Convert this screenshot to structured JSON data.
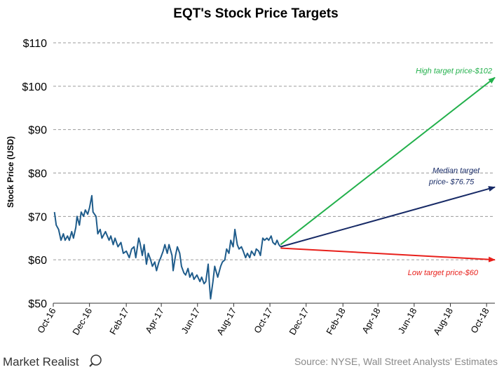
{
  "chart_data": {
    "type": "line",
    "title": "EQT's Stock Price Targets",
    "ylabel": "Stock Price (USD)",
    "xlabel": "",
    "ylim": [
      50,
      110
    ],
    "yticks": [
      50,
      60,
      70,
      80,
      90,
      100,
      110
    ],
    "ytick_labels": [
      "$50",
      "$60",
      "$70",
      "$80",
      "$90",
      "$100",
      "$110"
    ],
    "x_range": [
      "2016-10-01",
      "2018-10-15"
    ],
    "xtick_labels": [
      "Oct-16",
      "Dec-16",
      "Feb-17",
      "Apr-17",
      "Jun-17",
      "Aug-17",
      "Oct-17",
      "Dec-17",
      "Feb-18",
      "Apr-18",
      "Jun-18",
      "Aug-18",
      "Oct-18"
    ],
    "xtick_dates": [
      "2016-10-01",
      "2016-12-01",
      "2017-02-01",
      "2017-04-01",
      "2017-06-01",
      "2017-08-01",
      "2017-10-01",
      "2017-12-01",
      "2018-02-01",
      "2018-04-01",
      "2018-06-01",
      "2018-08-01",
      "2018-10-01"
    ],
    "grid": true,
    "series": [
      {
        "color": "#1f5c8b",
        "points": [
          [
            "2016-10-03",
            71.0
          ],
          [
            "2016-10-06",
            68.0
          ],
          [
            "2016-10-10",
            67.0
          ],
          [
            "2016-10-14",
            64.5
          ],
          [
            "2016-10-18",
            66.0
          ],
          [
            "2016-10-21",
            64.5
          ],
          [
            "2016-10-25",
            65.5
          ],
          [
            "2016-10-28",
            64.5
          ],
          [
            "2016-11-01",
            66.5
          ],
          [
            "2016-11-04",
            65.0
          ],
          [
            "2016-11-08",
            67.5
          ],
          [
            "2016-11-10",
            70.0
          ],
          [
            "2016-11-14",
            68.0
          ],
          [
            "2016-11-17",
            71.0
          ],
          [
            "2016-11-21",
            70.0
          ],
          [
            "2016-11-24",
            71.5
          ],
          [
            "2016-11-28",
            70.5
          ],
          [
            "2016-12-01",
            72.0
          ],
          [
            "2016-12-05",
            74.8
          ],
          [
            "2016-12-07",
            71.0
          ],
          [
            "2016-12-12",
            70.0
          ],
          [
            "2016-12-15",
            66.0
          ],
          [
            "2016-12-19",
            67.0
          ],
          [
            "2016-12-22",
            65.0
          ],
          [
            "2016-12-28",
            66.5
          ],
          [
            "2017-01-03",
            64.5
          ],
          [
            "2017-01-06",
            65.5
          ],
          [
            "2017-01-10",
            63.5
          ],
          [
            "2017-01-13",
            65.0
          ],
          [
            "2017-01-18",
            63.0
          ],
          [
            "2017-01-23",
            64.0
          ],
          [
            "2017-01-27",
            61.5
          ],
          [
            "2017-02-01",
            62.0
          ],
          [
            "2017-02-06",
            60.5
          ],
          [
            "2017-02-10",
            62.5
          ],
          [
            "2017-02-14",
            63.0
          ],
          [
            "2017-02-17",
            60.5
          ],
          [
            "2017-02-22",
            65.0
          ],
          [
            "2017-02-24",
            64.0
          ],
          [
            "2017-02-28",
            61.0
          ],
          [
            "2017-03-03",
            63.5
          ],
          [
            "2017-03-07",
            59.0
          ],
          [
            "2017-03-10",
            61.5
          ],
          [
            "2017-03-14",
            60.0
          ],
          [
            "2017-03-17",
            58.5
          ],
          [
            "2017-03-21",
            59.5
          ],
          [
            "2017-03-24",
            57.5
          ],
          [
            "2017-03-28",
            59.5
          ],
          [
            "2017-03-31",
            60.5
          ],
          [
            "2017-04-04",
            62.0
          ],
          [
            "2017-04-07",
            63.5
          ],
          [
            "2017-04-11",
            61.5
          ],
          [
            "2017-04-14",
            63.5
          ],
          [
            "2017-04-19",
            61.0
          ],
          [
            "2017-04-21",
            57.5
          ],
          [
            "2017-04-25",
            61.0
          ],
          [
            "2017-04-28",
            63.0
          ],
          [
            "2017-05-02",
            61.5
          ],
          [
            "2017-05-05",
            58.5
          ],
          [
            "2017-05-09",
            57.0
          ],
          [
            "2017-05-12",
            56.5
          ],
          [
            "2017-05-16",
            58.0
          ],
          [
            "2017-05-19",
            56.0
          ],
          [
            "2017-05-23",
            57.0
          ],
          [
            "2017-05-26",
            55.5
          ],
          [
            "2017-05-31",
            56.5
          ],
          [
            "2017-06-05",
            55.0
          ],
          [
            "2017-06-08",
            56.0
          ],
          [
            "2017-06-12",
            54.5
          ],
          [
            "2017-06-15",
            55.0
          ],
          [
            "2017-06-19",
            59.0
          ],
          [
            "2017-06-21",
            54.5
          ],
          [
            "2017-06-23",
            51.0
          ],
          [
            "2017-06-27",
            55.0
          ],
          [
            "2017-06-30",
            58.5
          ],
          [
            "2017-07-05",
            56.0
          ],
          [
            "2017-07-10",
            58.5
          ],
          [
            "2017-07-13",
            59.5
          ],
          [
            "2017-07-17",
            60.0
          ],
          [
            "2017-07-20",
            62.5
          ],
          [
            "2017-07-24",
            61.5
          ],
          [
            "2017-07-27",
            64.5
          ],
          [
            "2017-07-31",
            63.0
          ],
          [
            "2017-08-03",
            67.0
          ],
          [
            "2017-08-07",
            63.5
          ],
          [
            "2017-08-10",
            62.5
          ],
          [
            "2017-08-14",
            63.0
          ],
          [
            "2017-08-17",
            62.0
          ],
          [
            "2017-08-21",
            60.5
          ],
          [
            "2017-08-24",
            61.5
          ],
          [
            "2017-08-28",
            60.5
          ],
          [
            "2017-08-31",
            62.0
          ],
          [
            "2017-09-05",
            61.0
          ],
          [
            "2017-09-08",
            62.5
          ],
          [
            "2017-09-12",
            62.0
          ],
          [
            "2017-09-15",
            61.0
          ],
          [
            "2017-09-19",
            65.0
          ],
          [
            "2017-09-22",
            64.5
          ],
          [
            "2017-09-26",
            65.0
          ],
          [
            "2017-09-29",
            64.5
          ],
          [
            "2017-10-03",
            65.5
          ],
          [
            "2017-10-06",
            64.0
          ],
          [
            "2017-10-10",
            63.5
          ],
          [
            "2017-10-13",
            64.5
          ],
          [
            "2017-10-16",
            63.5
          ],
          [
            "2017-10-19",
            63.0
          ]
        ]
      }
    ],
    "projections": [
      {
        "label": "High target price-$102",
        "value": 102,
        "color": "#22b04b",
        "start": [
          "2017-10-19",
          63.5
        ],
        "end": "2018-10-15"
      },
      {
        "label": "Median target price- $76.75",
        "label_lines": [
          "Median target",
          "price- $76.75"
        ],
        "value": 76.75,
        "color": "#172a66",
        "start": [
          "2017-10-19",
          63.0
        ],
        "end": "2018-10-15"
      },
      {
        "label": "Low target price-$60",
        "value": 60,
        "color": "#e8201b",
        "start": [
          "2017-10-19",
          62.7
        ],
        "end": "2018-10-15"
      }
    ]
  },
  "footer": {
    "brand": "Market Realist",
    "source": "Source: NYSE, Wall Street Analysts' Estimates"
  }
}
